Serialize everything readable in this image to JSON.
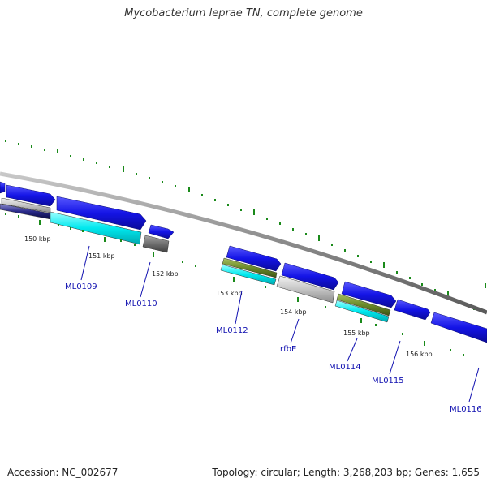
{
  "title": "Mycobacterium leprae TN, complete genome",
  "footer": {
    "accession": "Accession: NC_002677",
    "topology": "Topology: circular; Length: 3,268,203 bp; Genes: 1,655"
  },
  "colors": {
    "backbone": "#8a8a8a",
    "cds_forward": "#1414e6",
    "cds_reverse_cyan": "#00e0e6",
    "olive": "#6b8a2a",
    "gray": "#bdbdbd",
    "dark_gray": "#6e6e6e",
    "navy": "#1a1a6e",
    "tick_green": "#1a8a1a",
    "gene_label": "#1010b0"
  },
  "kbp_labels": [
    "150 kbp",
    "151 kbp",
    "152 kbp",
    "153 kbp",
    "154 kbp",
    "155 kbp",
    "156 kbp"
  ],
  "gene_labels": [
    "ML0109",
    "ML0110",
    "ML0112",
    "rfbE",
    "ML0114",
    "ML0115",
    "ML0116"
  ]
}
